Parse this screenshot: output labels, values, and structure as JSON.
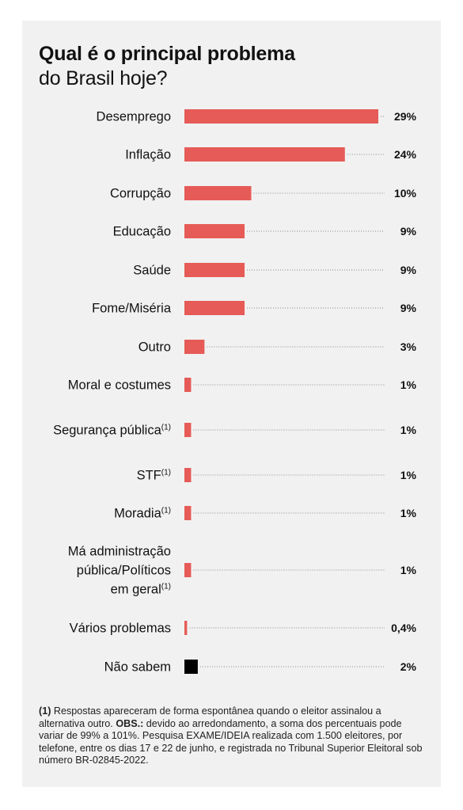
{
  "header": {
    "title": "Qual é o principal problema",
    "subtitle": "do Brasil hoje?"
  },
  "colors": {
    "bar": "#e65b57",
    "bar_unknown": "#000000",
    "background": "#f1f1f1",
    "dots": "#888888"
  },
  "chart_data": {
    "type": "bar",
    "orientation": "horizontal",
    "title": "Qual é o principal problema do Brasil hoje?",
    "value_format": "percent",
    "categories": [
      {
        "label": [
          "Desemprego"
        ],
        "footnote": ""
      },
      {
        "label": [
          "Inflação"
        ],
        "footnote": ""
      },
      {
        "label": [
          "Corrupção"
        ],
        "footnote": ""
      },
      {
        "label": [
          "Educação"
        ],
        "footnote": ""
      },
      {
        "label": [
          "Saúde"
        ],
        "footnote": ""
      },
      {
        "label": [
          "Fome/Miséria"
        ],
        "footnote": ""
      },
      {
        "label": [
          "Outro"
        ],
        "footnote": ""
      },
      {
        "label": [
          "Moral e costumes"
        ],
        "footnote": ""
      },
      {
        "label": [
          "Segurança pública"
        ],
        "footnote": "(1)"
      },
      {
        "label": [
          "STF"
        ],
        "footnote": "(1)"
      },
      {
        "label": [
          "Moradia"
        ],
        "footnote": "(1)"
      },
      {
        "label": [
          "Má administração",
          "pública/Políticos",
          "em geral"
        ],
        "footnote": "(1)"
      },
      {
        "label": [
          "Vários problemas"
        ],
        "footnote": ""
      },
      {
        "label": [
          "Não sabem"
        ],
        "footnote": ""
      }
    ],
    "values": [
      29,
      24,
      10,
      9,
      9,
      9,
      3,
      1,
      1,
      1,
      1,
      1,
      0.4,
      2
    ],
    "value_labels": [
      "29%",
      "24%",
      "10%",
      "9%",
      "9%",
      "9%",
      "3%",
      "1%",
      "1%",
      "1%",
      "1%",
      "1%",
      "0,4%",
      "2%"
    ],
    "highlight": [
      "Não sabem"
    ],
    "xlim": [
      0,
      29
    ]
  },
  "footnote": {
    "marker": "(1)",
    "text1": " Respostas apareceram de forma espontânea quando o eleitor assinalou a alternativa outro. ",
    "obs_label": "OBS.:",
    "text2": " devido ao arredondamento, a soma dos percentuais pode variar de 99% a 101%. Pesquisa EXAME/IDEIA realizada com 1.500 eleitores, por telefone, entre os dias 17 e 22 de junho, e registrada no Tribunal Superior Eleitoral sob número BR-02845-2022."
  }
}
